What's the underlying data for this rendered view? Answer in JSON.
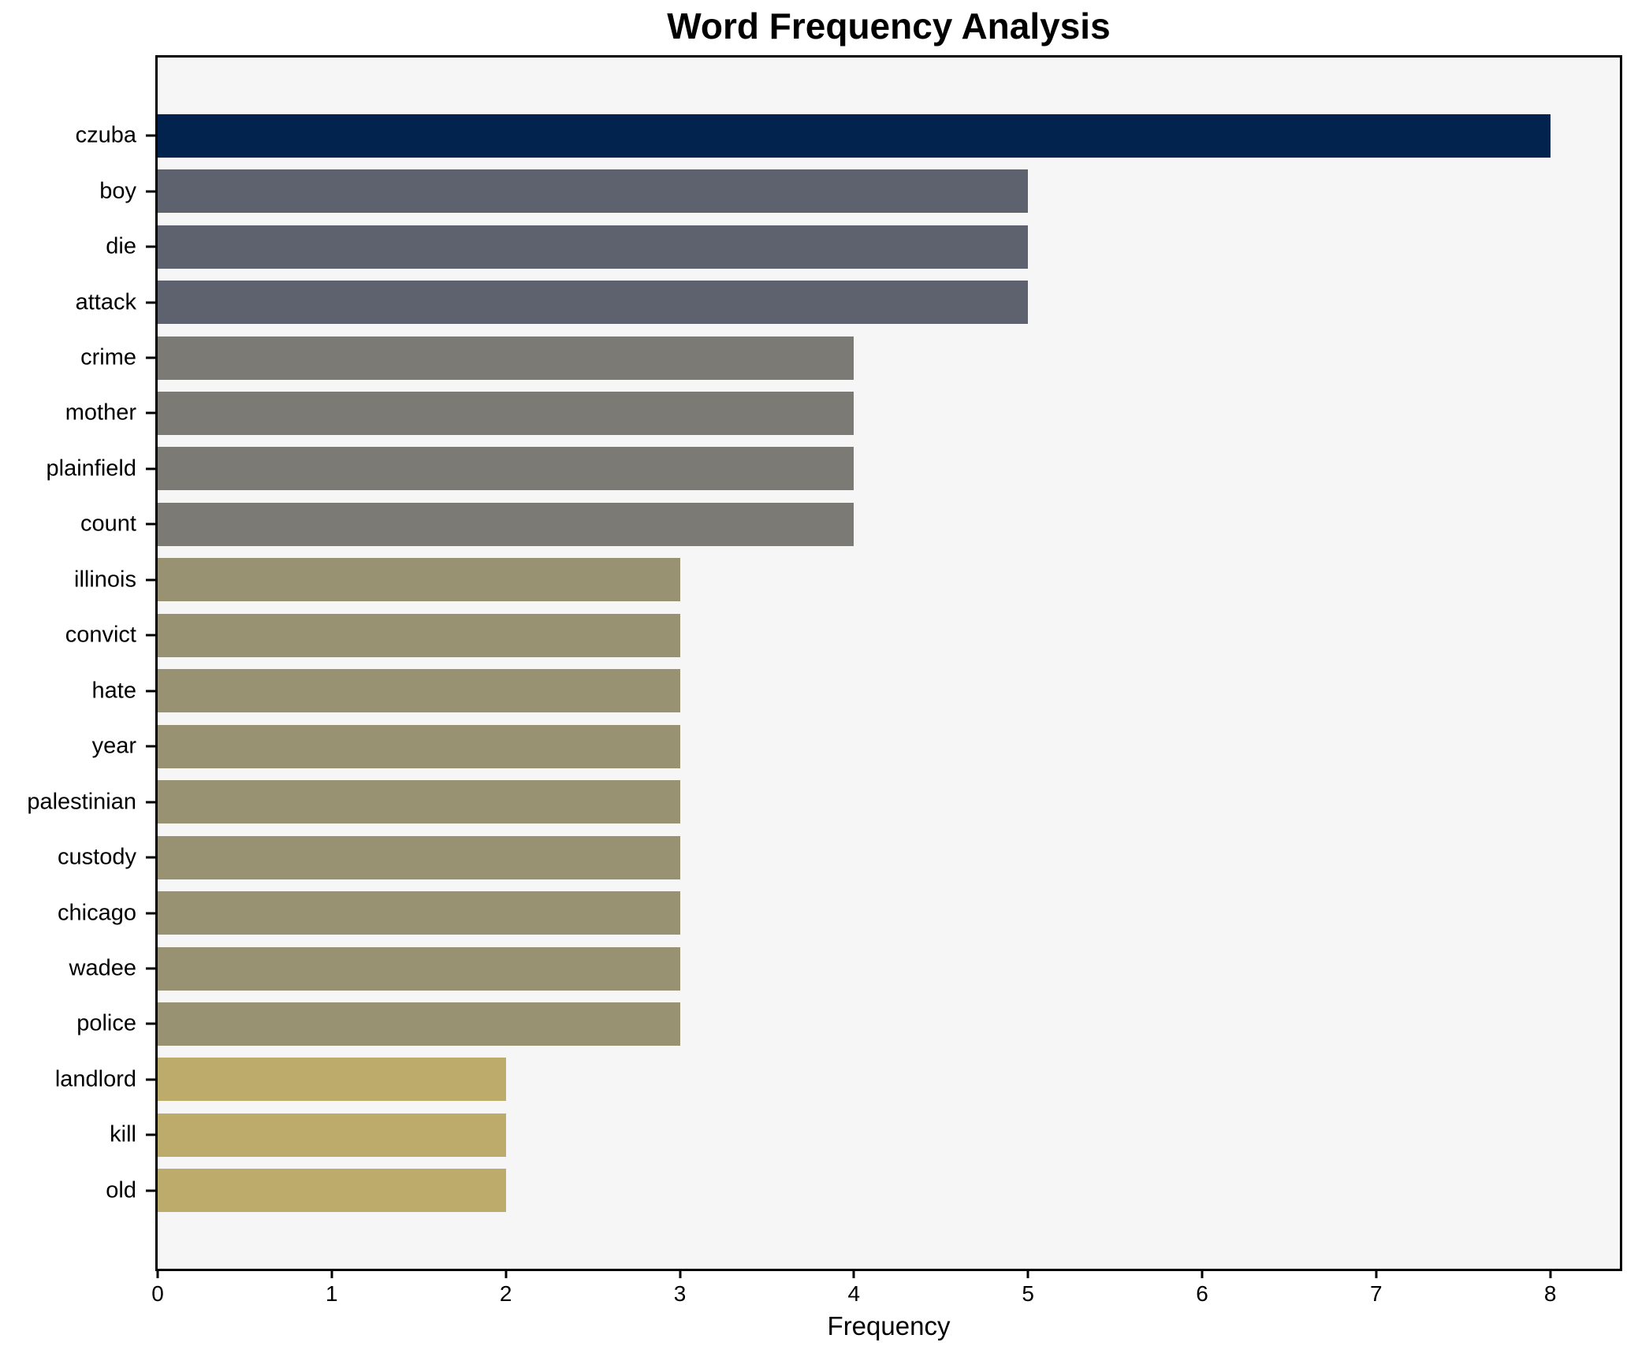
{
  "chart_data": {
    "type": "bar",
    "orientation": "horizontal",
    "title": "Word Frequency Analysis",
    "xlabel": "Frequency",
    "ylabel": "",
    "categories": [
      "czuba",
      "boy",
      "die",
      "attack",
      "crime",
      "mother",
      "plainfield",
      "count",
      "illinois",
      "convict",
      "hate",
      "year",
      "palestinian",
      "custody",
      "chicago",
      "wadee",
      "police",
      "landlord",
      "kill",
      "old"
    ],
    "values": [
      8,
      5,
      5,
      5,
      4,
      4,
      4,
      4,
      3,
      3,
      3,
      3,
      3,
      3,
      3,
      3,
      3,
      2,
      2,
      2
    ],
    "bar_colors": [
      "#02234d",
      "#5e626e",
      "#5e626e",
      "#5e626e",
      "#7b7a74",
      "#7b7a74",
      "#7b7a74",
      "#7b7a74",
      "#999272",
      "#999272",
      "#999272",
      "#999272",
      "#999272",
      "#999272",
      "#999272",
      "#999272",
      "#999272",
      "#bcab6a",
      "#bcab6a",
      "#bcab6a"
    ],
    "x_ticks": [
      0,
      1,
      2,
      3,
      4,
      5,
      6,
      7,
      8
    ],
    "xlim": [
      0,
      8.4
    ],
    "grid": false,
    "legend": false,
    "plot_background": "#f6f6f6",
    "figure_background": "#ffffff",
    "spine_color": "#000000",
    "text_color": "#000000"
  }
}
